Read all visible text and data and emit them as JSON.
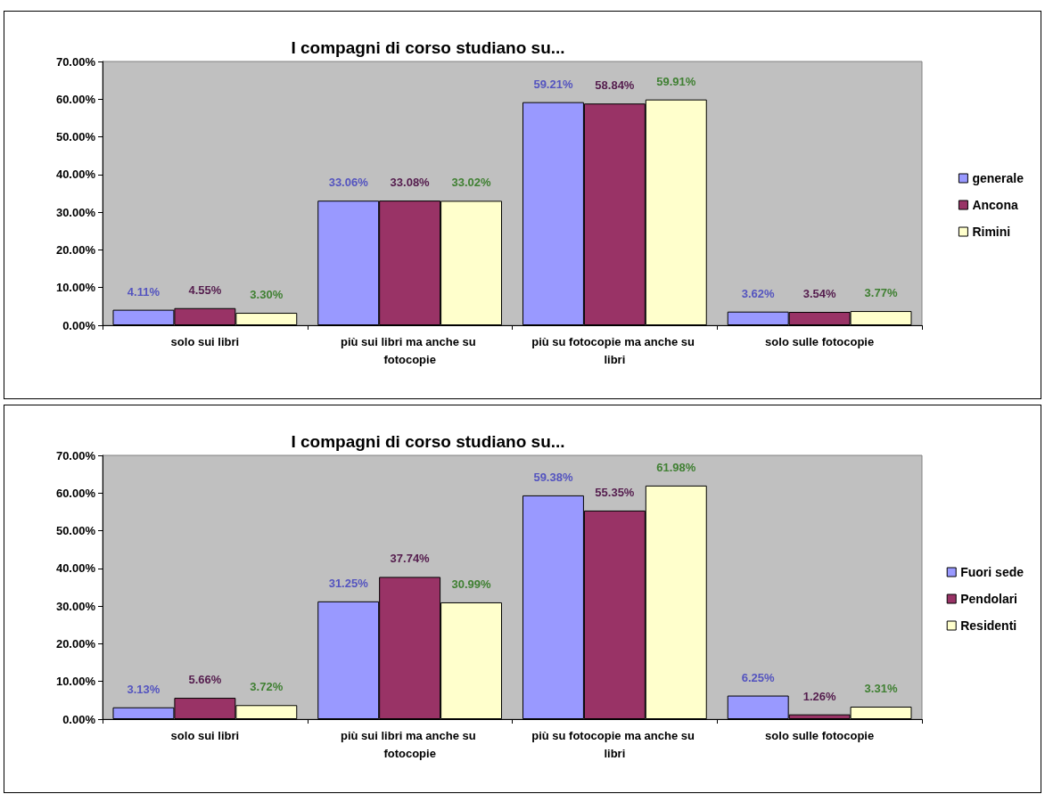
{
  "chart_data": [
    {
      "type": "bar",
      "title": "I compagni di corso studiano su...",
      "categories": [
        "solo sui libri",
        "più sui libri ma anche su fotocopie",
        "più su fotocopie ma anche su libri",
        "solo sulle fotocopie"
      ],
      "series": [
        {
          "name": "generale",
          "color": "#9999ff",
          "values": [
            4.11,
            33.06,
            59.21,
            3.62
          ],
          "value_labels": [
            "4.11%",
            "33.06%",
            "59.21%",
            "3.62%"
          ]
        },
        {
          "name": "Ancona",
          "color": "#993366",
          "values": [
            4.55,
            33.08,
            58.84,
            3.54
          ],
          "value_labels": [
            "4.55%",
            "33.08%",
            "58.84%",
            "3.54%"
          ]
        },
        {
          "name": "Rimini",
          "color": "#ffffcc",
          "values": [
            3.3,
            33.02,
            59.91,
            3.77
          ],
          "value_labels": [
            "3.30%",
            "33.02%",
            "59.91%",
            "3.77%"
          ]
        }
      ],
      "ylim": [
        0,
        70
      ],
      "yticks": [
        {
          "value": 0,
          "label": "0.00%"
        },
        {
          "value": 10,
          "label": "10.00%"
        },
        {
          "value": 20,
          "label": "20.00%"
        },
        {
          "value": 30,
          "label": "30.00%"
        },
        {
          "value": 40,
          "label": "40.00%"
        },
        {
          "value": 50,
          "label": "50.00%"
        },
        {
          "value": 60,
          "label": "60.00%"
        },
        {
          "value": 70,
          "label": "70.00%"
        }
      ],
      "legend": "right"
    },
    {
      "type": "bar",
      "title": "I compagni di corso studiano su...",
      "categories": [
        "solo sui libri",
        "più sui libri ma anche su fotocopie",
        "più su fotocopie ma anche su libri",
        "solo sulle fotocopie"
      ],
      "series": [
        {
          "name": "Fuori sede",
          "color": "#9999ff",
          "values": [
            3.13,
            31.25,
            59.38,
            6.25
          ],
          "value_labels": [
            "3.13%",
            "31.25%",
            "59.38%",
            "6.25%"
          ]
        },
        {
          "name": "Pendolari",
          "color": "#993366",
          "values": [
            5.66,
            37.74,
            55.35,
            1.26
          ],
          "value_labels": [
            "5.66%",
            "37.74%",
            "55.35%",
            "1.26%"
          ]
        },
        {
          "name": "Residenti",
          "color": "#ffffcc",
          "values": [
            3.72,
            30.99,
            61.98,
            3.31
          ],
          "value_labels": [
            "3.72%",
            "30.99%",
            "61.98%",
            "3.31%"
          ]
        }
      ],
      "ylim": [
        0,
        70
      ],
      "yticks": [
        {
          "value": 0,
          "label": "0.00%"
        },
        {
          "value": 10,
          "label": "10.00%"
        },
        {
          "value": 20,
          "label": "20.00%"
        },
        {
          "value": 30,
          "label": "30.00%"
        },
        {
          "value": 40,
          "label": "40.00%"
        },
        {
          "value": 50,
          "label": "50.00%"
        },
        {
          "value": 60,
          "label": "60.00%"
        },
        {
          "value": 70,
          "label": "70.00%"
        }
      ],
      "legend": "right"
    }
  ]
}
